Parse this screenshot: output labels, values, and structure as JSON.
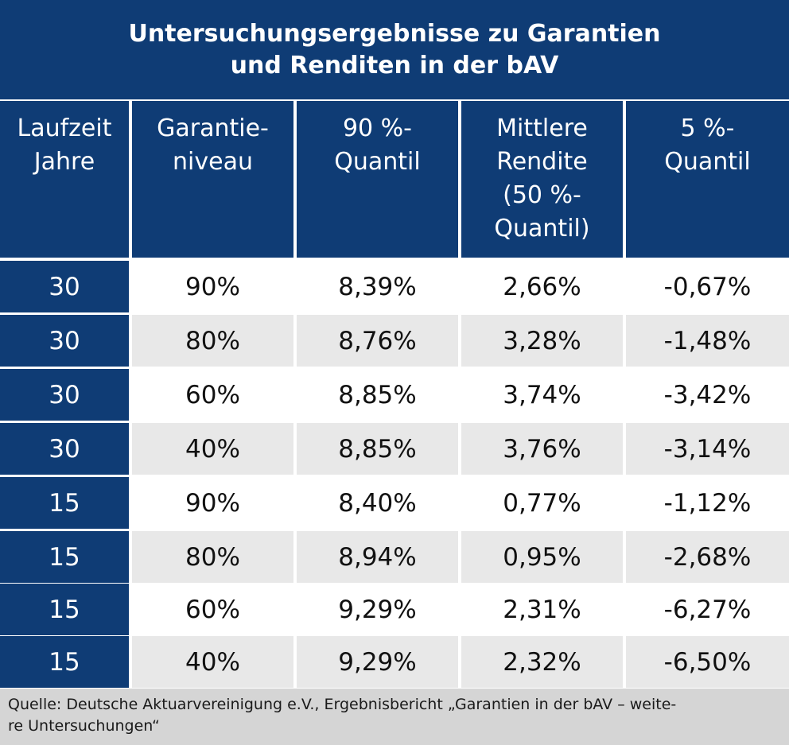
{
  "title": {
    "line1": "Untersuchungsergebnisse zu Garantien",
    "line2": "und Renditen in der bAV"
  },
  "columns": [
    {
      "lines": [
        "Laufzeit",
        "Jahre"
      ]
    },
    {
      "lines": [
        "Garantie-",
        "niveau"
      ]
    },
    {
      "lines": [
        "90 %-",
        "Quantil"
      ]
    },
    {
      "lines": [
        "Mittlere",
        "Rendite",
        "(50 %-",
        "Quantil)"
      ]
    },
    {
      "lines": [
        "5 %-",
        "Quantil"
      ]
    }
  ],
  "rows": [
    [
      "30",
      "90%",
      "8,39%",
      "2,66%",
      "-0,67%"
    ],
    [
      "30",
      "80%",
      "8,76%",
      "3,28%",
      "-1,48%"
    ],
    [
      "30",
      "60%",
      "8,85%",
      "3,74%",
      "-3,42%"
    ],
    [
      "30",
      "40%",
      "8,85%",
      "3,76%",
      "-3,14%"
    ],
    [
      "15",
      "90%",
      "8,40%",
      "0,77%",
      "-1,12%"
    ],
    [
      "15",
      "80%",
      "8,94%",
      "0,95%",
      "-2,68%"
    ],
    [
      "15",
      "60%",
      "9,29%",
      "2,31%",
      "-6,27%"
    ],
    [
      "15",
      "40%",
      "9,29%",
      "2,32%",
      "-6,50%"
    ]
  ],
  "source": {
    "line1": "Quelle: Deutsche Aktuarvereinigung e.V., Ergebnisbericht „Garantien in der bAV – weite-",
    "line2": "re Untersuchungen“"
  },
  "colors": {
    "navy": "#0f3c75",
    "row_alt": "#e8e8e8",
    "source_bg": "#d5d5d5"
  }
}
